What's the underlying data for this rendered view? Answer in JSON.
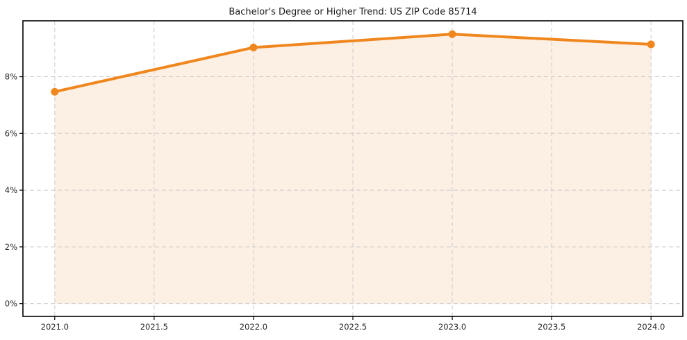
{
  "chart_data": {
    "type": "area",
    "title": "Bachelor's Degree or Higher Trend: US ZIP Code 85714",
    "series_name": "Bachelor's Degree or Higher",
    "x": [
      2021,
      2022,
      2023,
      2024
    ],
    "values": [
      7.47,
      9.03,
      9.5,
      9.14
    ],
    "xlabel": "",
    "ylabel": "",
    "xlim": [
      2020.84,
      2024.16
    ],
    "ylim": [
      -0.45,
      9.97
    ],
    "xticks": [
      2021.0,
      2021.5,
      2022.0,
      2022.5,
      2023.0,
      2023.5,
      2024.0
    ],
    "xtick_labels": [
      "2021.0",
      "2021.5",
      "2022.0",
      "2022.5",
      "2023.0",
      "2023.5",
      "2024.0"
    ],
    "yticks": [
      0,
      2,
      4,
      6,
      8
    ],
    "ytick_labels": [
      "0%",
      "2%",
      "4%",
      "6%",
      "8%"
    ],
    "grid": true,
    "grid_style": "dashed",
    "legend_position": "none",
    "fill_baseline": 0,
    "marker": "circle",
    "colors": {
      "line": "#f0871e",
      "marker": "#f0871e",
      "fill": "#fcefe3",
      "grid": "#cccccc",
      "spine": "#000000",
      "title_text": "#1a1a1a",
      "tick_text": "#262626",
      "background": "#ffffff"
    }
  }
}
